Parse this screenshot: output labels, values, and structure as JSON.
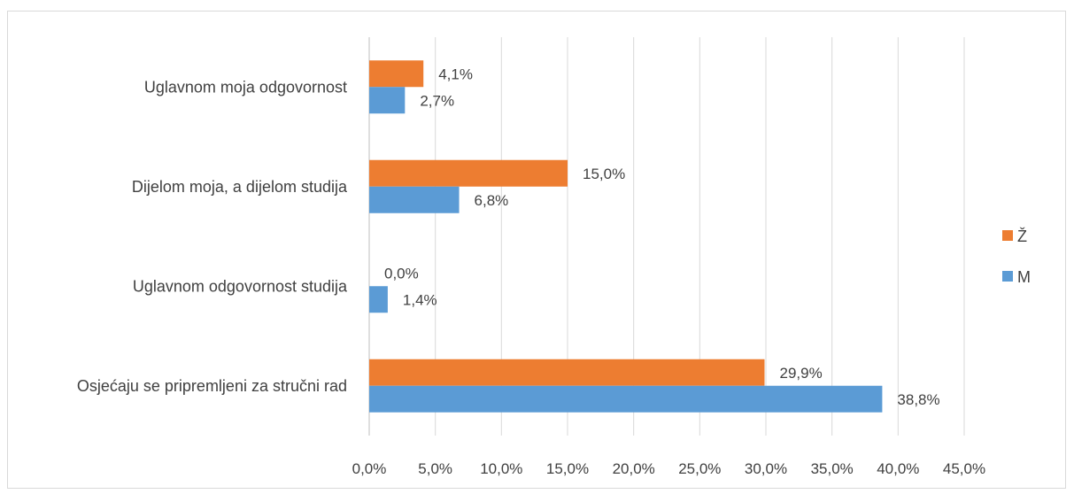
{
  "chart_data": {
    "type": "bar",
    "orientation": "horizontal",
    "categories": [
      "Uglavnom moja odgovornost",
      "Dijelom moja, a dijelom studija",
      "Uglavnom odgovornost studija",
      "Osjećaju se pripremljeni za stručni rad"
    ],
    "series": [
      {
        "name": "Ž",
        "color": "#ED7D31",
        "values": [
          4.1,
          15.0,
          0.0,
          29.9
        ],
        "labels": [
          "4,1%",
          "15,0%",
          "0,0%",
          "29,9%"
        ]
      },
      {
        "name": "M",
        "color": "#5B9BD5",
        "values": [
          2.7,
          6.8,
          1.4,
          38.8
        ],
        "labels": [
          "2,7%",
          "6,8%",
          "1,4%",
          "38,8%"
        ]
      }
    ],
    "xlim": [
      0,
      45
    ],
    "xticks": [
      0,
      5,
      10,
      15,
      20,
      25,
      30,
      35,
      40,
      45
    ],
    "xtick_labels": [
      "0,0%",
      "5,0%",
      "10,0%",
      "15,0%",
      "20,0%",
      "25,0%",
      "30,0%",
      "35,0%",
      "40,0%",
      "45,0%"
    ],
    "grid": "vertical",
    "legend_position": "right",
    "legend": [
      {
        "name": "Ž",
        "color": "#ED7D31"
      },
      {
        "name": "M",
        "color": "#5B9BD5"
      }
    ]
  }
}
